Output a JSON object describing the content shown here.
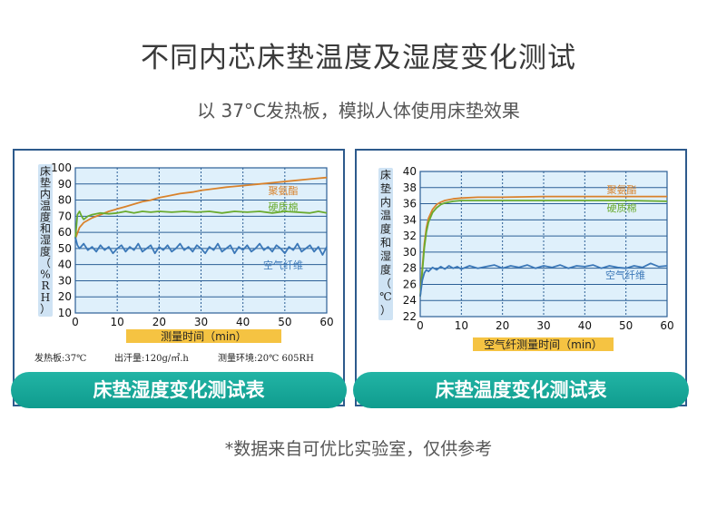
{
  "header": {
    "title": "不同内芯床垫温度及湿度变化测试",
    "subtitle": "以 37°C发热板，模拟人体使用床垫效果"
  },
  "footer": {
    "note": "*数据来自可优比实验室，仅供参考"
  },
  "left_panel": {
    "banner": "床垫湿度变化测试表",
    "ylabel": "床垫内温度和湿度（%RH）",
    "xlabel": "测量时间（min）",
    "notes": [
      "发热板:37℃",
      "出汗量:120g/㎡.h",
      "测量环境:20℃ 605RH"
    ]
  },
  "right_panel": {
    "banner": "床垫温度变化测试表",
    "ylabel": "床垫内温度和湿度（℃）",
    "xlabel": "空气纤测量时间（min）"
  },
  "colors": {
    "polyurethane": "#d9822b",
    "hard_cotton": "#6aab2e",
    "air_fiber": "#3b78b8",
    "plot_bg": "#dff0fb",
    "grid": "#2c5f96",
    "banner": "#14a696",
    "frame": "#2d5a8c",
    "axis_label_bar": "#f5c342"
  },
  "chart_data": [
    {
      "type": "line",
      "title": "床垫湿度变化测试表",
      "xlabel": "测量时间（min）",
      "ylabel": "床垫内温度和湿度（%RH）",
      "xlim": [
        0,
        60
      ],
      "ylim": [
        10,
        100
      ],
      "xticks": [
        0,
        10,
        20,
        30,
        40,
        50,
        60
      ],
      "yticks": [
        10,
        20,
        30,
        40,
        50,
        60,
        70,
        80,
        90,
        100
      ],
      "grid": true,
      "series": [
        {
          "name": "聚氨酯",
          "color_key": "polyurethane",
          "x": [
            0,
            1,
            2,
            4,
            6,
            8,
            10,
            12,
            14,
            16,
            18,
            20,
            22,
            25,
            28,
            30,
            33,
            36,
            40,
            44,
            48,
            52,
            56,
            60
          ],
          "y": [
            56,
            63,
            66,
            69,
            71,
            73,
            74.5,
            76,
            77.5,
            79,
            80,
            81.5,
            82.5,
            84,
            85,
            86,
            87,
            88,
            89,
            90,
            91,
            92,
            93,
            94
          ]
        },
        {
          "name": "硬质棉",
          "color_key": "hard_cotton",
          "x": [
            0,
            0.5,
            1,
            1.5,
            2,
            3,
            4,
            6,
            8,
            10,
            12,
            14,
            16,
            18,
            20,
            23,
            26,
            29,
            32,
            35,
            38,
            41,
            44,
            47,
            50,
            53,
            56,
            58,
            60
          ],
          "y": [
            56,
            71,
            73,
            70,
            68,
            70,
            71,
            72,
            71.5,
            72,
            73,
            72,
            73,
            72.5,
            73,
            72.5,
            73,
            72.5,
            73,
            72,
            73,
            72.5,
            73,
            72,
            73,
            72.5,
            72,
            73,
            72
          ]
        },
        {
          "name": "空气纤维",
          "color_key": "air_fiber",
          "x": [
            0,
            0.5,
            1,
            2,
            3,
            4,
            5,
            6,
            7,
            8,
            9,
            10,
            11,
            12,
            13,
            14,
            15,
            16,
            17,
            18,
            19,
            20,
            21,
            22,
            23,
            24,
            25,
            26,
            27,
            28,
            29,
            30,
            31,
            32,
            33,
            34,
            35,
            36,
            37,
            38,
            39,
            40,
            41,
            42,
            43,
            44,
            45,
            46,
            47,
            48,
            49,
            50,
            51,
            52,
            53,
            54,
            55,
            56,
            57,
            58,
            59,
            60
          ],
          "y": [
            57,
            52,
            50,
            53,
            49,
            51,
            48,
            52,
            49,
            51,
            47,
            50,
            52,
            48,
            51,
            49,
            53,
            48,
            50,
            52,
            47,
            51,
            49,
            52,
            48,
            50,
            53,
            49,
            51,
            48,
            52,
            50,
            47,
            51,
            49,
            53,
            48,
            50,
            52,
            47,
            51,
            49,
            52,
            48,
            50,
            53,
            49,
            51,
            48,
            52,
            50,
            47,
            51,
            49,
            53,
            48,
            50,
            52,
            48,
            51,
            46,
            51
          ]
        }
      ]
    },
    {
      "type": "line",
      "title": "床垫温度变化测试表",
      "xlabel": "空气纤测量时间（min）",
      "ylabel": "床垫内温度和湿度（℃）",
      "xlim": [
        0,
        60
      ],
      "ylim": [
        22,
        40
      ],
      "xticks": [
        0,
        10,
        20,
        30,
        40,
        50,
        60
      ],
      "yticks": [
        22,
        24,
        26,
        28,
        30,
        32,
        34,
        36,
        38,
        40
      ],
      "grid": true,
      "series": [
        {
          "name": "聚氨酯",
          "color_key": "polyurethane",
          "x": [
            0,
            0.5,
            1,
            1.5,
            2,
            3,
            4,
            5,
            6,
            8,
            10,
            14,
            20,
            30,
            40,
            50,
            60
          ],
          "y": [
            24.5,
            28,
            31,
            33,
            34.2,
            35.3,
            35.9,
            36.2,
            36.4,
            36.6,
            36.7,
            36.8,
            36.8,
            36.9,
            36.9,
            36.9,
            36.9
          ]
        },
        {
          "name": "硬质棉",
          "color_key": "hard_cotton",
          "x": [
            0,
            0.5,
            1,
            1.5,
            2,
            3,
            4,
            5,
            6,
            8,
            10,
            14,
            20,
            30,
            40,
            50,
            60
          ],
          "y": [
            24.5,
            27.5,
            30.5,
            32.5,
            33.7,
            34.9,
            35.5,
            35.9,
            36.1,
            36.3,
            36.4,
            36.4,
            36.4,
            36.4,
            36.4,
            36.4,
            36.3
          ]
        },
        {
          "name": "空气纤维",
          "color_key": "air_fiber",
          "x": [
            0,
            0.5,
            1,
            1.5,
            2,
            3,
            4,
            5,
            6,
            7,
            8,
            9,
            10,
            12,
            14,
            16,
            18,
            20,
            22,
            24,
            26,
            28,
            30,
            32,
            34,
            36,
            38,
            40,
            42,
            44,
            46,
            48,
            50,
            52,
            54,
            56,
            58,
            60
          ],
          "y": [
            24.5,
            26.5,
            27.4,
            27.8,
            27.6,
            28.1,
            27.8,
            28.2,
            27.9,
            28.3,
            28.0,
            28.2,
            27.9,
            28.3,
            28.0,
            28.2,
            28.4,
            28.0,
            28.3,
            28.1,
            28.4,
            28.0,
            28.3,
            28.1,
            28.4,
            28.0,
            28.3,
            28.2,
            28.4,
            28.0,
            28.3,
            28.1,
            28.0,
            28.3,
            28.1,
            28.6,
            28.2,
            28.3
          ]
        }
      ]
    }
  ]
}
